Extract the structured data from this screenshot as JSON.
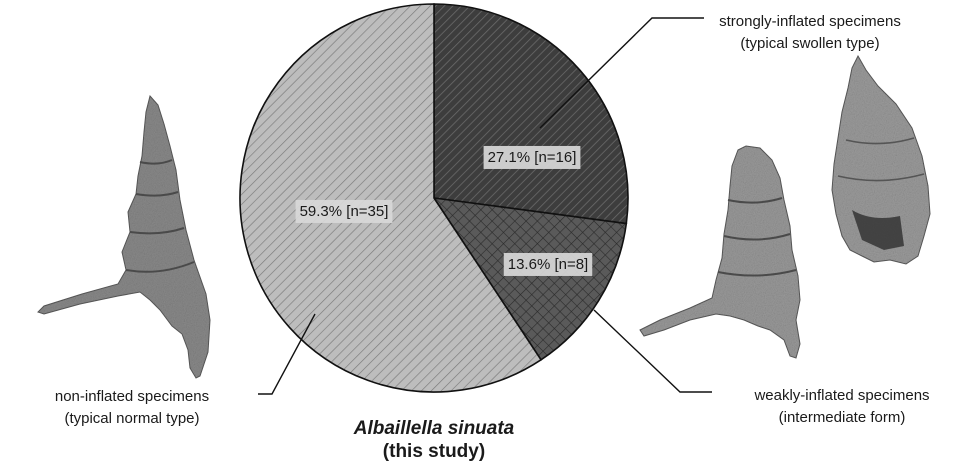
{
  "chart_data": {
    "type": "pie",
    "title": "Albaillella sinuata",
    "subtitle": "(this study)",
    "slices": [
      {
        "label": "27.1% [n=16]",
        "percent": 27.1,
        "n": 16,
        "fill": "#3d3d3d",
        "pattern": "diagonal-hatch",
        "category_line1": "strongly-inflated specimens",
        "category_line2": "(typical swollen type)"
      },
      {
        "label": "13.6% [n=8]",
        "percent": 13.6,
        "n": 8,
        "fill": "#5a5a5a",
        "pattern": "crosshatch",
        "category_line1": "weakly-inflated specimens",
        "category_line2": "(intermediate form)"
      },
      {
        "label": "59.3% [n=35]",
        "percent": 59.3,
        "n": 35,
        "fill": "#bdbdbd",
        "pattern": "diagonal-hatch",
        "category_line1": "non-inflated specimens",
        "category_line2": "(typical normal type)"
      }
    ]
  },
  "images": [
    {
      "subject": "non-inflated specimen fossil micrograph"
    },
    {
      "subject": "weakly-inflated specimen fossil micrograph"
    },
    {
      "subject": "strongly-inflated specimen fossil micrograph"
    }
  ]
}
